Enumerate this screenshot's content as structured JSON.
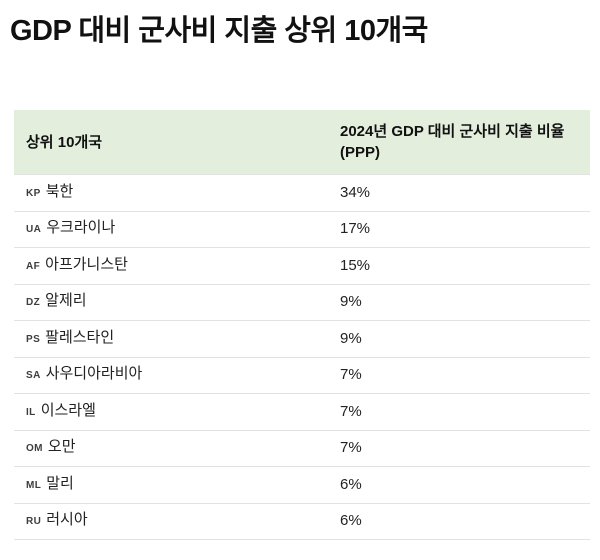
{
  "page": {
    "title": "GDP 대비 군사비 지출 상위 10개국"
  },
  "table": {
    "header": {
      "rank_label": "상위 10개국",
      "value_label": "2024년 GDP 대비 군사비 지출 비율 (PPP)"
    },
    "rows": [
      {
        "code": "KP",
        "name": "북한",
        "value": "34%"
      },
      {
        "code": "UA",
        "name": "우크라이나",
        "value": "17%"
      },
      {
        "code": "AF",
        "name": "아프가니스탄",
        "value": "15%"
      },
      {
        "code": "DZ",
        "name": "알제리",
        "value": "9%"
      },
      {
        "code": "PS",
        "name": "팔레스타인",
        "value": "9%"
      },
      {
        "code": "SA",
        "name": "사우디아라비아",
        "value": "7%"
      },
      {
        "code": "IL",
        "name": "이스라엘",
        "value": "7%"
      },
      {
        "code": "OM",
        "name": "오만",
        "value": "7%"
      },
      {
        "code": "ML",
        "name": "말리",
        "value": "6%"
      },
      {
        "code": "RU",
        "name": "러시아",
        "value": "6%"
      }
    ]
  },
  "colors": {
    "header_bg": "#e4eedd",
    "divider": "#e2e2e2",
    "text": "#222222",
    "title": "#111111",
    "code": "#3d3d3d"
  },
  "chart_data": {
    "type": "table",
    "title": "GDP 대비 군사비 지출 상위 10개국",
    "columns": [
      "상위 10개국",
      "2024년 GDP 대비 군사비 지출 비율 (PPP)"
    ],
    "rows": [
      [
        "KP 북한",
        "34%"
      ],
      [
        "UA 우크라이나",
        "17%"
      ],
      [
        "AF 아프가니스탄",
        "15%"
      ],
      [
        "DZ 알제리",
        "9%"
      ],
      [
        "PS 팔레스타인",
        "9%"
      ],
      [
        "SA 사우디아라비아",
        "7%"
      ],
      [
        "IL 이스라엘",
        "7%"
      ],
      [
        "OM 오만",
        "7%"
      ],
      [
        "ML 말리",
        "6%"
      ],
      [
        "RU 러시아",
        "6%"
      ]
    ],
    "values_pct": [
      34,
      17,
      15,
      9,
      9,
      7,
      7,
      7,
      6,
      6
    ],
    "year": "2024"
  }
}
